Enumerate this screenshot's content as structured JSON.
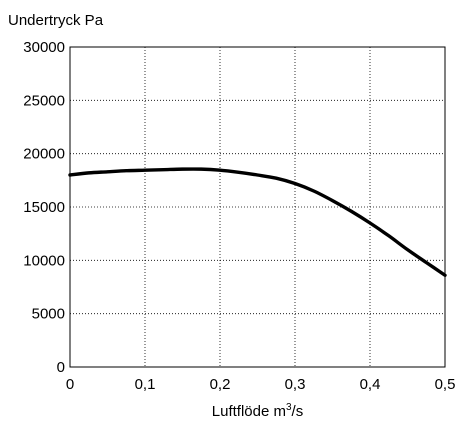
{
  "chart_data": {
    "type": "line",
    "title": "",
    "ylabel": "Undertryck  Pa",
    "xlabel": {
      "text": "Luftflöde  m",
      "superscript": "3",
      "suffix": "/s"
    },
    "xlim": [
      0,
      0.5
    ],
    "ylim": [
      0,
      30000
    ],
    "x_ticks": [
      0,
      0.1,
      0.2,
      0.3,
      0.4,
      0.5
    ],
    "x_tick_labels": [
      "0",
      "0,1",
      "0,2",
      "0,3",
      "0,4",
      "0,5"
    ],
    "y_ticks": [
      0,
      5000,
      10000,
      15000,
      20000,
      25000,
      30000
    ],
    "y_tick_labels": [
      "0",
      "5000",
      "10000",
      "15000",
      "20000",
      "25000",
      "30000"
    ],
    "grid": true,
    "grid_style": "dotted",
    "series": [
      {
        "color": "#000000",
        "x": [
          0,
          0.025,
          0.05,
          0.075,
          0.1,
          0.125,
          0.15,
          0.175,
          0.2,
          0.225,
          0.25,
          0.275,
          0.3,
          0.325,
          0.35,
          0.375,
          0.4,
          0.425,
          0.45,
          0.475,
          0.5
        ],
        "y": [
          18000,
          18200,
          18300,
          18400,
          18450,
          18500,
          18550,
          18550,
          18450,
          18250,
          18000,
          17700,
          17200,
          16500,
          15600,
          14600,
          13500,
          12300,
          11000,
          9800,
          8600
        ]
      }
    ]
  }
}
